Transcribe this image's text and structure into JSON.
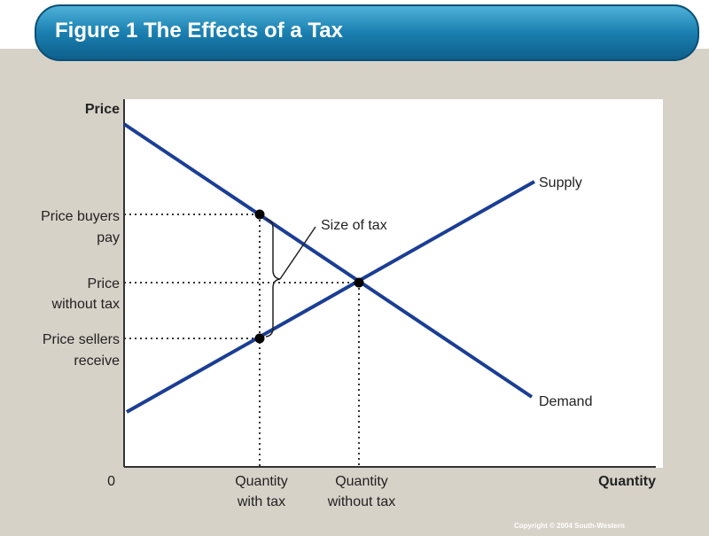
{
  "header": {
    "title": "Figure 1 The Effects of a Tax"
  },
  "diagram": {
    "y_axis_label": "Price",
    "x_axis_label": "Quantity",
    "origin_label": "0",
    "price_labels": {
      "buyers": [
        "Price buyers",
        "pay"
      ],
      "without_tax": [
        "Price",
        "without tax"
      ],
      "sellers": [
        "Price sellers",
        "receive"
      ]
    },
    "quantity_labels": {
      "with_tax": [
        "Quantity",
        "with tax"
      ],
      "without_tax": [
        "Quantity",
        "without tax"
      ]
    },
    "curves": {
      "supply": "Supply",
      "demand": "Demand"
    },
    "annotation": "Size of tax"
  },
  "footer": {
    "copyright": "Copyright © 2004 South-Western"
  }
}
